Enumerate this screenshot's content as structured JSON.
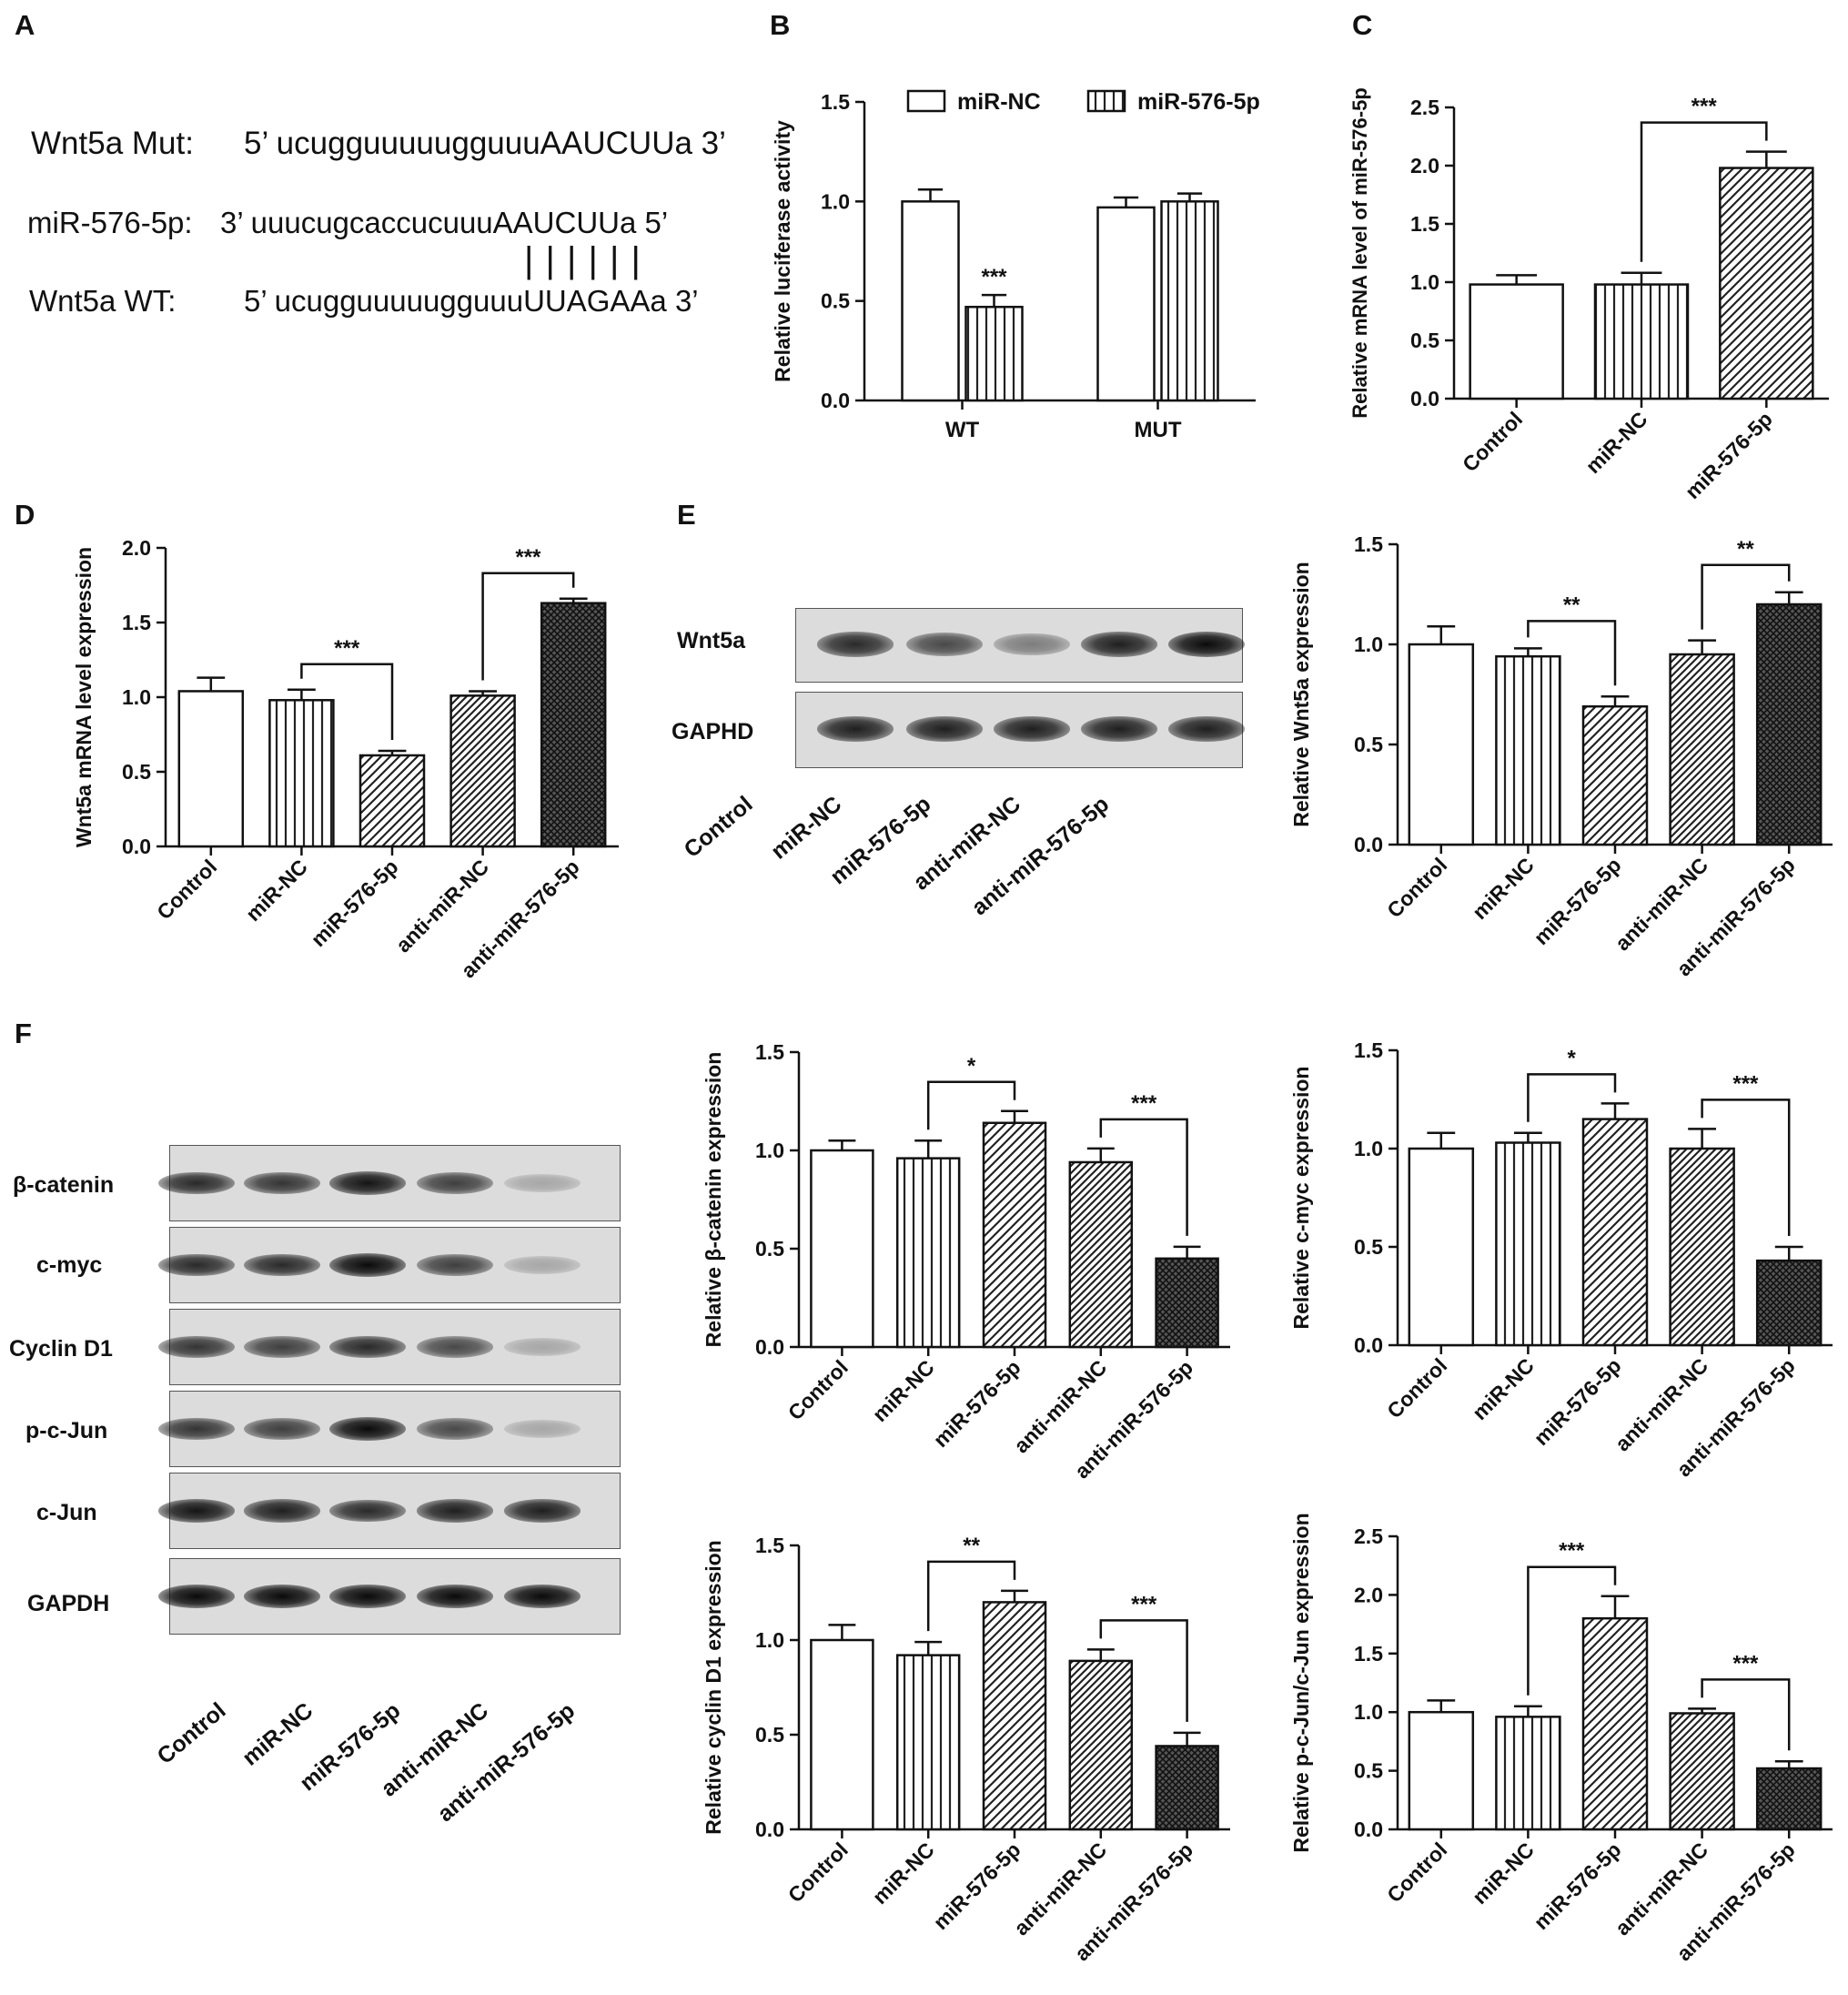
{
  "panels": {
    "A": "A",
    "B": "B",
    "C": "C",
    "D": "D",
    "E": "E",
    "F": "F"
  },
  "panel_a": {
    "mut_label": "Wnt5a  Mut:",
    "mut_seq": "5’ ucugguuuuugguuuAAUCUUa  3’",
    "mir_label": "miR-576-5p:",
    "mir_seq": "3’ uuucugcaccucuuuAAUCUUa  5’",
    "pairing": "| | | | | |",
    "wt_label": "Wnt5a  WT:",
    "wt_seq": "5’ ucugguuuuugguuuUUAGAAa  3’"
  },
  "blot_e": {
    "rows": [
      "Wnt5a",
      "GAPHD"
    ],
    "lanes": [
      "Control",
      "miR-NC",
      "miR-576-5p",
      "anti-miR-NC",
      "anti-miR-576-5p"
    ],
    "band_intensity": [
      [
        0.85,
        0.7,
        0.45,
        0.9,
        1.0
      ],
      [
        0.9,
        0.9,
        0.9,
        0.9,
        0.9
      ]
    ]
  },
  "blot_f": {
    "rows": [
      "β-catenin",
      "c-myc",
      "Cyclin D1",
      "p-c-Jun",
      "c-Jun",
      "GAPDH"
    ],
    "lanes": [
      "Control",
      "miR-NC",
      "miR-576-5p",
      "anti-miR-NC",
      "anti-miR-576-5p"
    ],
    "band_intensity": [
      [
        0.85,
        0.8,
        0.95,
        0.75,
        0.25
      ],
      [
        0.85,
        0.85,
        1.0,
        0.75,
        0.25
      ],
      [
        0.8,
        0.75,
        0.85,
        0.7,
        0.25
      ],
      [
        0.8,
        0.75,
        1.0,
        0.7,
        0.25
      ],
      [
        0.95,
        0.9,
        0.85,
        0.9,
        0.9
      ],
      [
        1.0,
        1.0,
        1.0,
        1.0,
        1.0
      ]
    ]
  },
  "chart_data": [
    {
      "id": "B",
      "type": "bar",
      "categories": [
        "WT",
        "MUT"
      ],
      "series": [
        {
          "name": "miR-NC",
          "values": [
            1.0,
            0.97
          ],
          "errors": [
            0.06,
            0.05
          ],
          "pattern": "white"
        },
        {
          "name": "miR-576-5p",
          "values": [
            0.47,
            1.0
          ],
          "errors": [
            0.06,
            0.04
          ],
          "pattern": "vertical"
        }
      ],
      "ylabel": "Relative luciferase activity",
      "ylim": [
        0,
        1.5
      ],
      "yticks": [
        "0.0",
        "0.5",
        "1.0",
        "1.5"
      ],
      "legend": "top",
      "annotations": [
        {
          "bar": [
            0,
            1
          ],
          "text": "***"
        }
      ]
    },
    {
      "id": "C",
      "type": "bar",
      "categories": [
        "Control",
        "miR-NC",
        "miR-576-5p"
      ],
      "values": [
        0.98,
        0.98,
        1.98
      ],
      "errors": [
        0.08,
        0.1,
        0.14
      ],
      "patterns": [
        "white",
        "vertical",
        "diag"
      ],
      "ylabel": "Relative mRNA level of miR-576-5p",
      "ylim": [
        0,
        2.5
      ],
      "yticks": [
        "0.0",
        "0.5",
        "1.0",
        "1.5",
        "2.0",
        "2.5"
      ],
      "brackets": [
        {
          "from": 1,
          "to": 2,
          "text": "***"
        }
      ]
    },
    {
      "id": "D",
      "type": "bar",
      "categories": [
        "Control",
        "miR-NC",
        "miR-576-5p",
        "anti-miR-NC",
        "anti-miR-576-5p"
      ],
      "values": [
        1.04,
        0.98,
        0.61,
        1.01,
        1.63
      ],
      "errors": [
        0.09,
        0.07,
        0.03,
        0.03,
        0.03
      ],
      "patterns": [
        "white",
        "vertical",
        "diag",
        "diag2",
        "cross"
      ],
      "ylabel": "Wnt5a mRNA level expression",
      "ylim": [
        0,
        2.0
      ],
      "yticks": [
        "0.0",
        "0.5",
        "1.0",
        "1.5",
        "2.0"
      ],
      "brackets": [
        {
          "from": 1,
          "to": 2,
          "text": "***"
        },
        {
          "from": 3,
          "to": 4,
          "text": "***"
        }
      ]
    },
    {
      "id": "E",
      "type": "bar",
      "categories": [
        "Control",
        "miR-NC",
        "miR-576-5p",
        "anti-miR-NC",
        "anti-miR-576-5p"
      ],
      "values": [
        1.0,
        0.94,
        0.69,
        0.95,
        1.2
      ],
      "errors": [
        0.09,
        0.04,
        0.05,
        0.07,
        0.06
      ],
      "patterns": [
        "white",
        "vertical",
        "diag",
        "diag2",
        "cross"
      ],
      "ylabel": "Relative Wnt5a expression",
      "ylim": [
        0,
        1.5
      ],
      "yticks": [
        "0.0",
        "0.5",
        "1.0",
        "1.5"
      ],
      "brackets": [
        {
          "from": 1,
          "to": 2,
          "text": "**"
        },
        {
          "from": 3,
          "to": 4,
          "text": "**"
        }
      ]
    },
    {
      "id": "F1",
      "type": "bar",
      "categories": [
        "Control",
        "miR-NC",
        "miR-576-5p",
        "anti-miR-NC",
        "anti-miR-576-5p"
      ],
      "values": [
        1.0,
        0.96,
        1.14,
        0.94,
        0.45
      ],
      "errors": [
        0.05,
        0.09,
        0.06,
        0.07,
        0.06
      ],
      "patterns": [
        "white",
        "vertical",
        "diag",
        "diag2",
        "cross"
      ],
      "ylabel": "Relative β-catenin expression",
      "ylim": [
        0,
        1.5
      ],
      "yticks": [
        "0.0",
        "0.5",
        "1.0",
        "1.5"
      ],
      "brackets": [
        {
          "from": 1,
          "to": 2,
          "text": "*"
        },
        {
          "from": 3,
          "to": 4,
          "text": "***"
        }
      ]
    },
    {
      "id": "F2",
      "type": "bar",
      "categories": [
        "Control",
        "miR-NC",
        "miR-576-5p",
        "anti-miR-NC",
        "anti-miR-576-5p"
      ],
      "values": [
        1.0,
        1.03,
        1.15,
        1.0,
        0.43
      ],
      "errors": [
        0.08,
        0.05,
        0.08,
        0.1,
        0.07
      ],
      "patterns": [
        "white",
        "vertical",
        "diag",
        "diag2",
        "cross"
      ],
      "ylabel": "Relative c-myc expression",
      "ylim": [
        0,
        1.5
      ],
      "yticks": [
        "0.0",
        "0.5",
        "1.0",
        "1.5"
      ],
      "brackets": [
        {
          "from": 1,
          "to": 2,
          "text": "*"
        },
        {
          "from": 3,
          "to": 4,
          "text": "***"
        }
      ]
    },
    {
      "id": "F3",
      "type": "bar",
      "categories": [
        "Control",
        "miR-NC",
        "miR-576-5p",
        "anti-miR-NC",
        "anti-miR-576-5p"
      ],
      "values": [
        1.0,
        0.92,
        1.2,
        0.89,
        0.44
      ],
      "errors": [
        0.08,
        0.07,
        0.06,
        0.06,
        0.07
      ],
      "patterns": [
        "white",
        "vertical",
        "diag",
        "diag2",
        "cross"
      ],
      "ylabel": "Relative cyclin D1 expression",
      "ylim": [
        0,
        1.5
      ],
      "yticks": [
        "0.0",
        "0.5",
        "1.0",
        "1.5"
      ],
      "brackets": [
        {
          "from": 1,
          "to": 2,
          "text": "**"
        },
        {
          "from": 3,
          "to": 4,
          "text": "***"
        }
      ]
    },
    {
      "id": "F4",
      "type": "bar",
      "categories": [
        "Control",
        "miR-NC",
        "miR-576-5p",
        "anti-miR-NC",
        "anti-miR-576-5p"
      ],
      "values": [
        1.0,
        0.96,
        1.8,
        0.99,
        0.52
      ],
      "errors": [
        0.1,
        0.09,
        0.19,
        0.04,
        0.06
      ],
      "patterns": [
        "white",
        "vertical",
        "diag",
        "diag2",
        "cross"
      ],
      "ylabel": "Relative p-c-Jun/c-Jun expression",
      "ylim": [
        0,
        2.5
      ],
      "yticks": [
        "0.0",
        "0.5",
        "1.0",
        "1.5",
        "2.0",
        "2.5"
      ],
      "brackets": [
        {
          "from": 1,
          "to": 2,
          "text": "***"
        },
        {
          "from": 3,
          "to": 4,
          "text": "***"
        }
      ]
    }
  ]
}
